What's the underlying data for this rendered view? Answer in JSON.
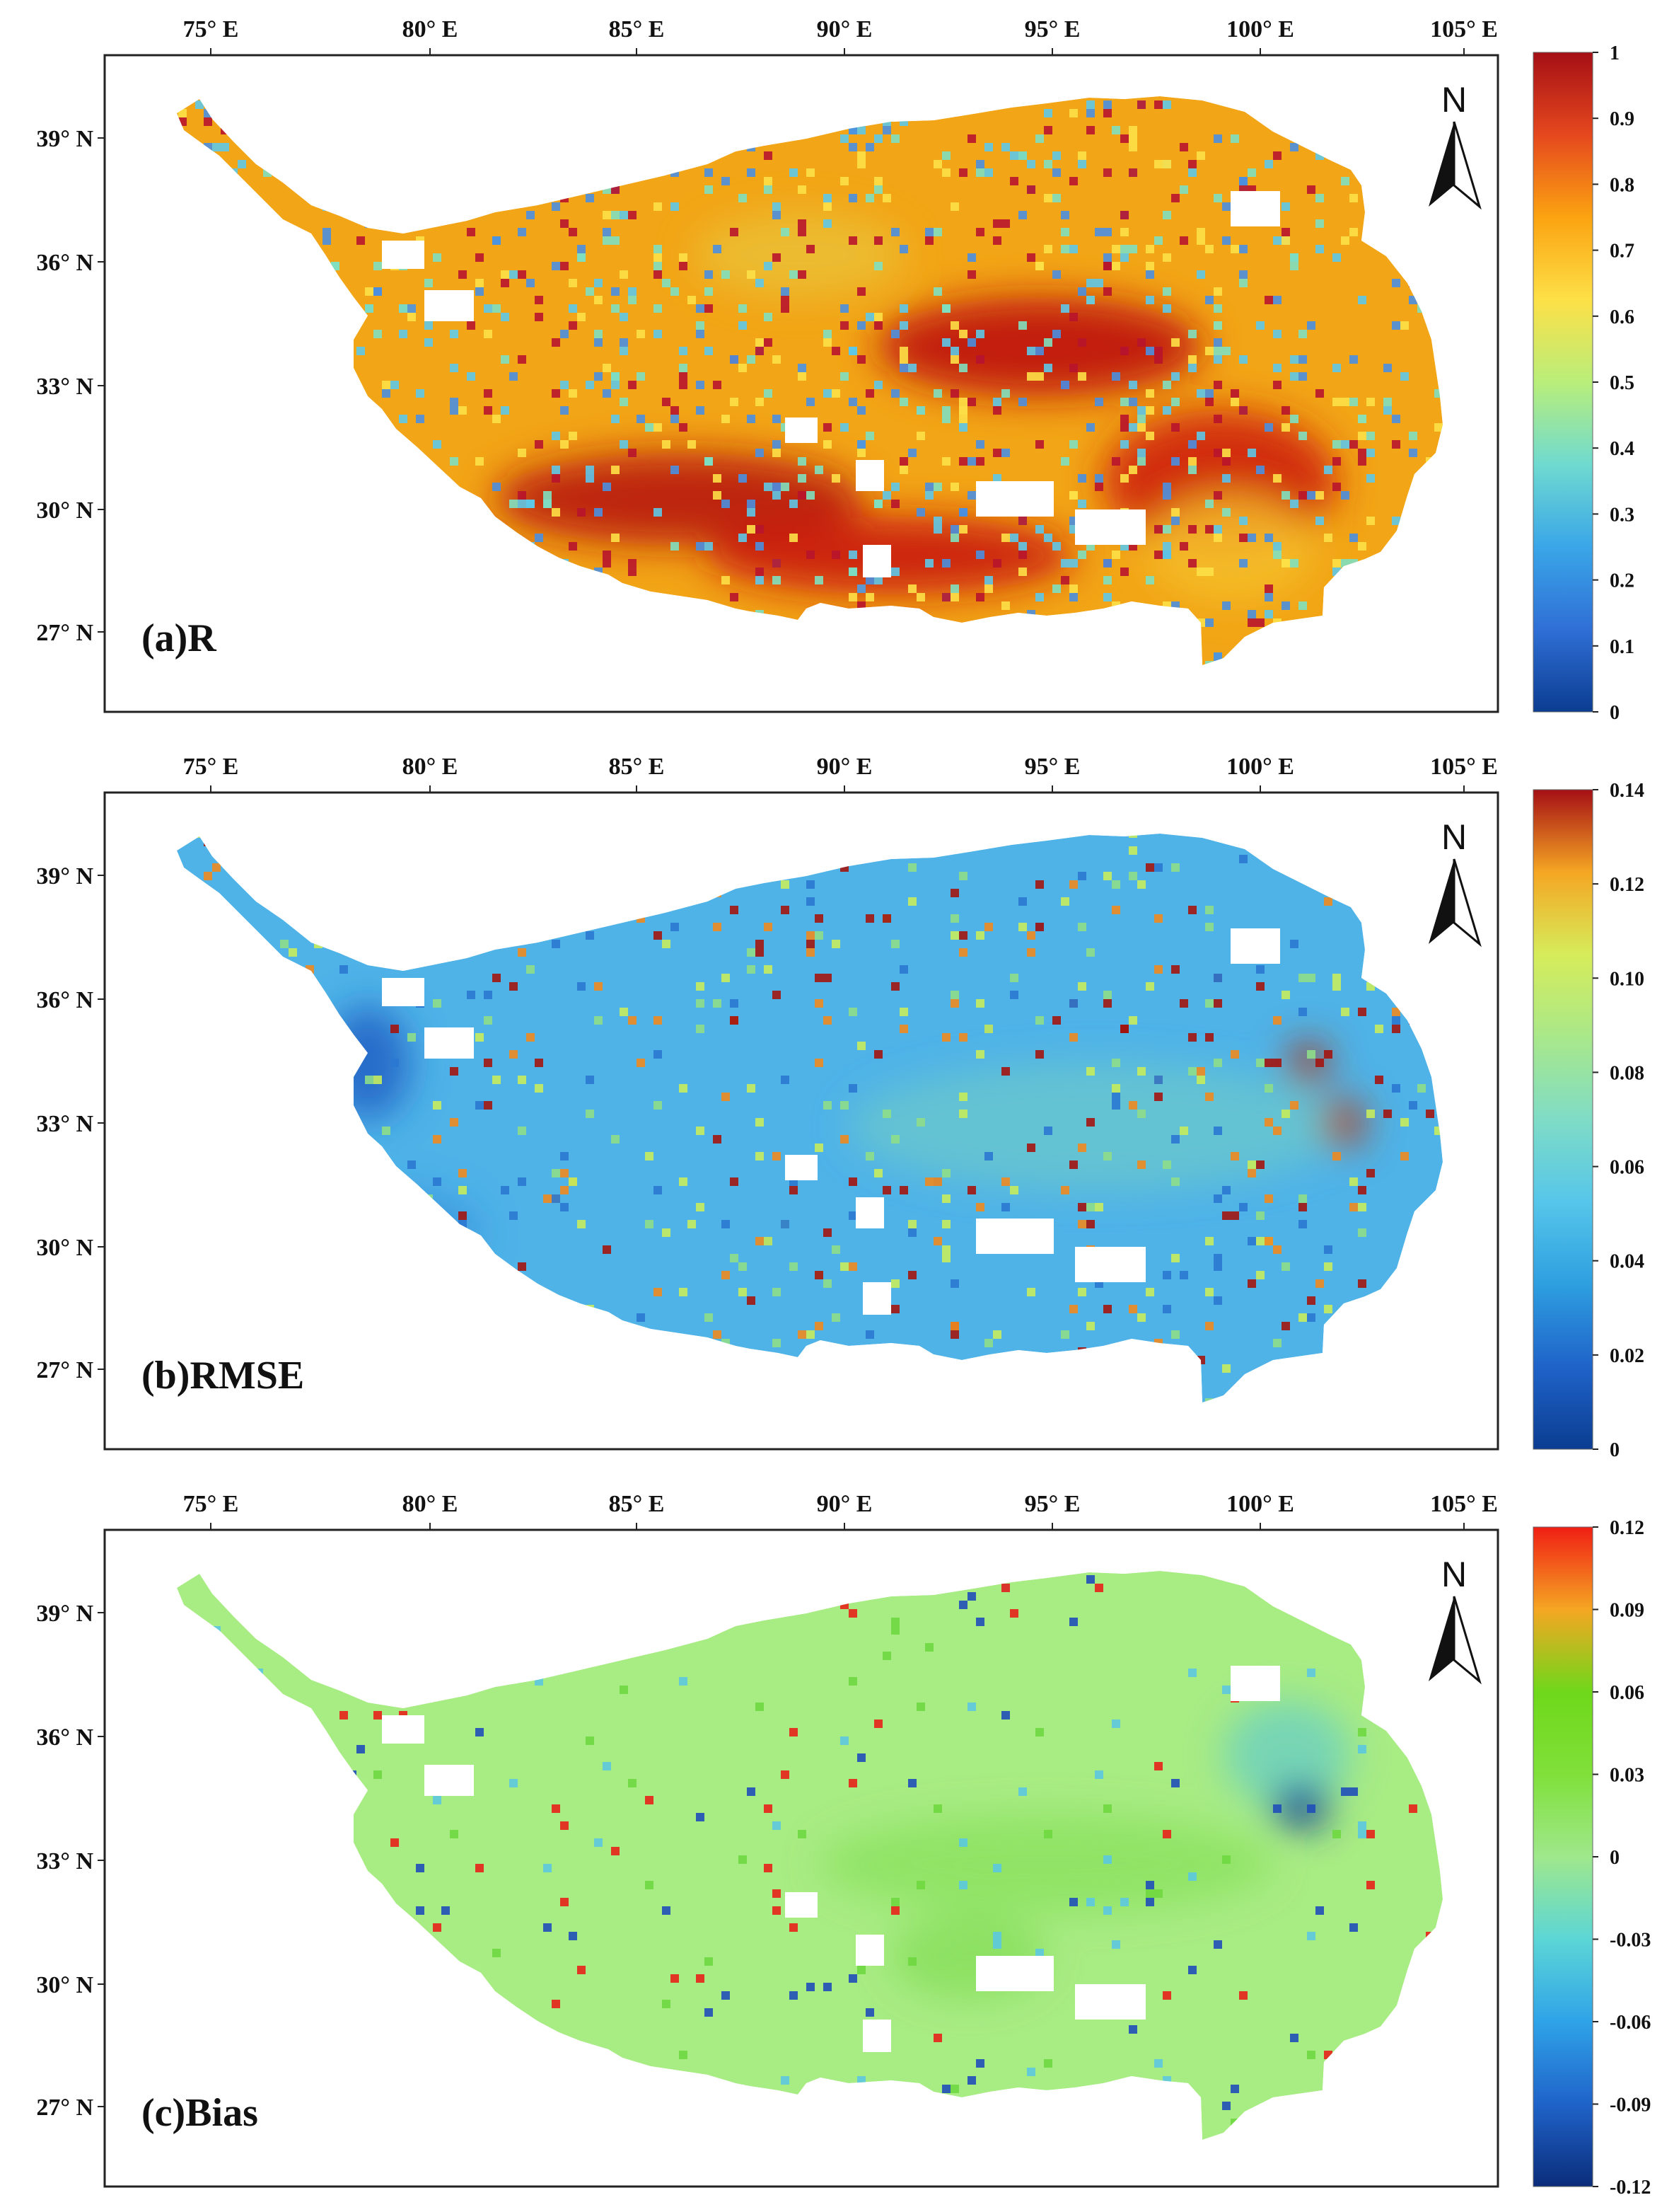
{
  "figure": {
    "lon_ticks": [
      "75° E",
      "80° E",
      "85° E",
      "90° E",
      "95° E",
      "100° E",
      "105° E"
    ],
    "lat_ticks": [
      "39° N",
      "36° N",
      "33° N",
      "30° N",
      "27° N"
    ],
    "north_arrow": {
      "letter": "N",
      "icon": "north-arrow-icon"
    },
    "panels": [
      {
        "id": "a",
        "label": "(a)R",
        "colormap": [
          "#0b3d91",
          "#2f6fd6",
          "#3aa6e8",
          "#6fdad0",
          "#b9ee7a",
          "#fde047",
          "#fca311",
          "#e5481e",
          "#a50f15"
        ],
        "colorbar_labels": [
          "1",
          "0.9",
          "0.8",
          "0.7",
          "0.6",
          "0.5",
          "0.4",
          "0.3",
          "0.2",
          "0.1",
          "0"
        ],
        "base_color": "#f2a516",
        "patches": [
          {
            "color": "#c0170e"
          },
          {
            "color": "#d0260f"
          },
          {
            "color": "#b8160e"
          },
          {
            "color": "#c91b0f"
          },
          {
            "color": "#f5c02a"
          },
          {
            "color": "#e8d24a"
          }
        ],
        "speckle_colors": [
          "#4a8fe0",
          "#5ec8e8",
          "#7fe0c0",
          "#b8142c",
          "#fde047"
        ]
      },
      {
        "id": "b",
        "label": "(b)RMSE",
        "colormap": [
          "#0b3d91",
          "#1f63c9",
          "#2e9fe0",
          "#56c6ea",
          "#7fdcc6",
          "#a9e88a",
          "#d6ec5a",
          "#f5a623",
          "#a50f15"
        ],
        "colorbar_labels": [
          "0.14",
          "0.12",
          "0.10",
          "0.08",
          "0.06",
          "0.04",
          "0.02",
          "0"
        ],
        "base_color": "#4fb3e8",
        "patches": [
          {
            "color": "#1f5fc4"
          },
          {
            "color": "#7fd6b8"
          },
          {
            "color": "#2a7fd8"
          },
          {
            "color": "#a83a1a"
          },
          {
            "color": "#b0401c"
          }
        ],
        "speckle_colors": [
          "#8ede8a",
          "#c7ec5c",
          "#f08a1f",
          "#a3140f",
          "#2a78d2"
        ]
      },
      {
        "id": "c",
        "label": "(c)Bias",
        "colormap": [
          "#0b2d7a",
          "#1f63c9",
          "#2fa3e8",
          "#5cd6d6",
          "#9fe88c",
          "#80e03a",
          "#6fd81a",
          "#f5a623",
          "#f01e14"
        ],
        "colorbar_labels": [
          "0.12",
          "0.09",
          "0.06",
          "0.03",
          "0",
          "-0.03",
          "-0.06",
          "-0.09",
          "-0.12"
        ],
        "base_color": "#a8ec84",
        "patches": [
          {
            "color": "#86e05a"
          },
          {
            "color": "#7ad84c"
          },
          {
            "color": "#5ccad0"
          },
          {
            "color": "#123a96"
          }
        ],
        "speckle_colors": [
          "#1f4fb8",
          "#e8221a",
          "#6fd840",
          "#5cc8e0"
        ]
      }
    ]
  }
}
